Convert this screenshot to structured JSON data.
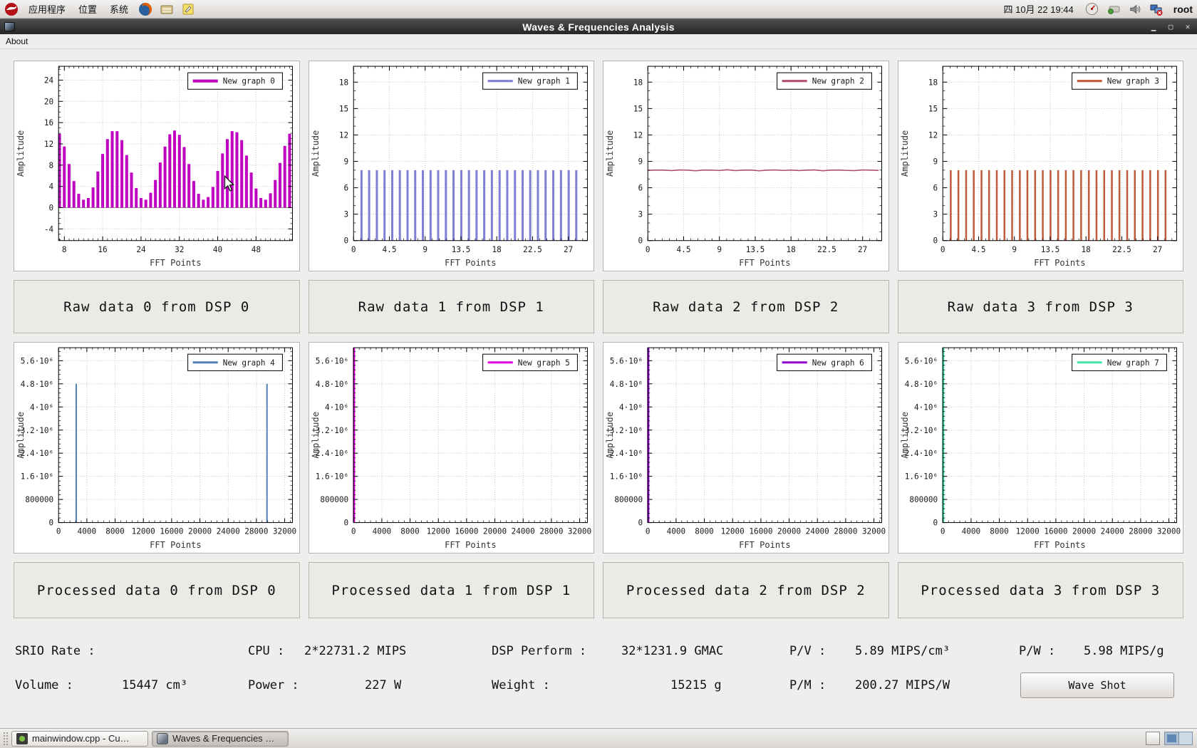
{
  "panel": {
    "menus": [
      "应用程序",
      "位置",
      "系统"
    ],
    "clock": "四 10月 22 19:44",
    "user": "root"
  },
  "window": {
    "title": "Waves & Frequencies Analysis",
    "about": "About"
  },
  "captions": {
    "raw": [
      "Raw data 0 from DSP 0",
      "Raw data 1 from DSP 1",
      "Raw data 2 from DSP 2",
      "Raw data 3 from DSP 3"
    ],
    "processed": [
      "Processed data 0 from DSP 0",
      "Processed data 1 from DSP 1",
      "Processed data 2 from DSP 2",
      "Processed data 3 from DSP 3"
    ]
  },
  "stats": {
    "row1": [
      {
        "label": "SRIO Rate :",
        "value": ""
      },
      {
        "label": "CPU :",
        "value": "2*22731.2 MIPS"
      },
      {
        "label": "DSP Perform :",
        "value": "32*1231.9 GMAC"
      },
      {
        "label": "P/V :",
        "value": "5.89 MIPS/cm³"
      },
      {
        "label": "P/W :",
        "value": "5.98 MIPS/g"
      }
    ],
    "row2": [
      {
        "label": "Volume :",
        "value": "15447 cm³"
      },
      {
        "label": "Power :",
        "value": "227 W"
      },
      {
        "label": "Weight :",
        "value": "15215 g"
      },
      {
        "label": "P/M :",
        "value": "200.27 MIPS/W"
      }
    ],
    "button": "Wave Shot"
  },
  "taskbar": {
    "tasks": [
      "mainwindow.cpp - Cu…",
      "Waves & Frequencies …"
    ]
  },
  "chart_data": [
    {
      "type": "bars",
      "legend": "New graph 0",
      "color": "#c000c0",
      "lw": 4,
      "xlabel": "FFT Points",
      "ylabel": "Amplitude",
      "xlim": [
        6.8,
        55.6
      ],
      "ylim": [
        -6.2,
        26.6
      ],
      "xticks": [
        8,
        16,
        24,
        32,
        40,
        48
      ],
      "xticklabels": [
        "8",
        "16",
        "24",
        "32",
        "40",
        "48"
      ],
      "xminor": 7,
      "yticks": [
        -4,
        0,
        4,
        8,
        12,
        16,
        20,
        24
      ],
      "yticklabels": [
        "-4",
        "0",
        "4",
        "8",
        "12",
        "16",
        "20",
        "24"
      ],
      "yminor": 3,
      "x": [
        7,
        8,
        9,
        10,
        11,
        12,
        13,
        14,
        15,
        16,
        17,
        18,
        19,
        20,
        21,
        22,
        23,
        24,
        25,
        26,
        27,
        28,
        29,
        30,
        31,
        32,
        33,
        34,
        35,
        36,
        37,
        38,
        39,
        40,
        41,
        42,
        43,
        44,
        45,
        46,
        47,
        48,
        49,
        50,
        51,
        52,
        53,
        54,
        55
      ],
      "y": [
        13.9,
        11.5,
        8.2,
        5.0,
        2.6,
        1.5,
        1.8,
        3.8,
        6.8,
        10.1,
        12.9,
        14.4,
        14.4,
        12.7,
        9.9,
        6.6,
        3.7,
        1.8,
        1.5,
        2.8,
        5.2,
        8.5,
        11.5,
        13.8,
        14.5,
        13.7,
        11.4,
        8.2,
        5.0,
        2.6,
        1.5,
        2.0,
        3.9,
        6.9,
        10.2,
        12.9,
        14.4,
        14.2,
        12.7,
        9.8,
        6.6,
        3.6,
        1.8,
        1.5,
        2.7,
        5.2,
        8.4,
        11.6,
        13.9
      ]
    },
    {
      "type": "bars",
      "legend": "New graph 1",
      "color": "#7f7fd5",
      "lw": 3,
      "xlabel": "FFT Points",
      "ylabel": "Amplitude",
      "xlim": [
        0,
        29.4
      ],
      "ylim": [
        0,
        19.8
      ],
      "xticks": [
        0,
        4.5,
        9,
        13.5,
        18,
        22.5,
        27
      ],
      "xticklabels": [
        "0",
        "4.5",
        "9",
        "13.5",
        "18",
        "22.5",
        "27"
      ],
      "xminor": 4,
      "yticks": [
        0,
        3,
        6,
        9,
        12,
        15,
        18
      ],
      "yticklabels": [
        "0",
        "3",
        "6",
        "9",
        "12",
        "15",
        "18"
      ],
      "yminor": 2,
      "x": [
        1,
        1.96,
        2.93,
        3.89,
        4.86,
        5.82,
        6.79,
        7.75,
        8.71,
        9.68,
        10.64,
        11.61,
        12.57,
        13.54,
        14.5,
        15.46,
        16.43,
        17.39,
        18.36,
        19.32,
        20.29,
        21.25,
        22.21,
        23.18,
        24.14,
        25.11,
        26.07,
        27.04,
        28
      ],
      "y": [
        8,
        8,
        8,
        8,
        8,
        8,
        8,
        8,
        8,
        8,
        8,
        8,
        8,
        8,
        8,
        8,
        8,
        8,
        8,
        8,
        8,
        8,
        8,
        8,
        8,
        8,
        8,
        8,
        8
      ]
    },
    {
      "type": "line",
      "legend": "New graph 2",
      "color": "#b0506a",
      "lw": 1.6,
      "xlabel": "FFT Points",
      "ylabel": "Amplitude",
      "xlim": [
        0,
        29.4
      ],
      "ylim": [
        0,
        19.8
      ],
      "xticks": [
        0,
        4.5,
        9,
        13.5,
        18,
        22.5,
        27
      ],
      "xticklabels": [
        "0",
        "4.5",
        "9",
        "13.5",
        "18",
        "22.5",
        "27"
      ],
      "xminor": 4,
      "yticks": [
        0,
        3,
        6,
        9,
        12,
        15,
        18
      ],
      "yticklabels": [
        "0",
        "3",
        "6",
        "9",
        "12",
        "15",
        "18"
      ],
      "yminor": 2,
      "x": [
        0,
        1,
        2,
        3,
        4,
        5,
        6,
        7,
        8,
        9,
        10,
        11,
        12,
        13,
        14,
        15,
        16,
        17,
        18,
        19,
        20,
        21,
        22,
        23,
        24,
        25,
        26,
        27,
        28,
        29
      ],
      "y": [
        7.98,
        8.02,
        8.0,
        7.95,
        8.03,
        8.0,
        7.94,
        8.02,
        8.0,
        7.97,
        8.04,
        7.95,
        8.0,
        8.02,
        7.93,
        8.0,
        8.03,
        7.97,
        8.02,
        7.95,
        8.0,
        8.03,
        7.94,
        8.0,
        8.02,
        7.97,
        7.95,
        8.03,
        8.0,
        7.98
      ]
    },
    {
      "type": "bars",
      "legend": "New graph 3",
      "color": "#c05a3c",
      "lw": 2.5,
      "xlabel": "FFT Points",
      "ylabel": "Amplitude",
      "xlim": [
        0,
        29.4
      ],
      "ylim": [
        0,
        19.8
      ],
      "xticks": [
        0,
        4.5,
        9,
        13.5,
        18,
        22.5,
        27
      ],
      "xticklabels": [
        "0",
        "4.5",
        "9",
        "13.5",
        "18",
        "22.5",
        "27"
      ],
      "xminor": 4,
      "yticks": [
        0,
        3,
        6,
        9,
        12,
        15,
        18
      ],
      "yticklabels": [
        "0",
        "3",
        "6",
        "9",
        "12",
        "15",
        "18"
      ],
      "yminor": 2,
      "x": [
        1,
        1.96,
        2.93,
        3.89,
        4.86,
        5.82,
        6.79,
        7.75,
        8.71,
        9.68,
        10.64,
        11.61,
        12.57,
        13.54,
        14.5,
        15.46,
        16.43,
        17.39,
        18.36,
        19.32,
        20.29,
        21.25,
        22.21,
        23.18,
        24.14,
        25.11,
        26.07,
        27.04,
        28
      ],
      "y": [
        8,
        8,
        8,
        8,
        8,
        8,
        8,
        8,
        8,
        8,
        8,
        8,
        8,
        8,
        8,
        8,
        8,
        8,
        8,
        8,
        8,
        8,
        8,
        8,
        8,
        8,
        8,
        8,
        8
      ]
    },
    {
      "type": "bars",
      "legend": "New graph 4",
      "color": "#5580b4",
      "lw": 2,
      "xlabel": "FFT Points",
      "ylabel": "Amplitude",
      "xlim": [
        0,
        33100
      ],
      "ylim": [
        0,
        6050000
      ],
      "xticks": [
        0,
        4000,
        8000,
        12000,
        16000,
        20000,
        24000,
        28000,
        32000
      ],
      "xticklabels": [
        "0",
        "4000",
        "8000",
        "12000",
        "16000",
        "20000",
        "24000",
        "28000",
        "32000"
      ],
      "xminor": 4,
      "yticks": [
        0,
        800000,
        1600000,
        2400000,
        3200000,
        4000000,
        4800000,
        5600000
      ],
      "yticklabels": [
        "0",
        "800000",
        "1.6·10⁶",
        "2.4·10⁶",
        "3.2·10⁶",
        "4·10⁶",
        "4.8·10⁶",
        "5.6·10⁶"
      ],
      "yminor": 4,
      "x": [
        2500,
        29500
      ],
      "y": [
        4800000,
        4800000
      ]
    },
    {
      "type": "bars",
      "legend": "New graph 5",
      "color": "#e000e0",
      "lw": 3,
      "xlabel": "FFT Points",
      "ylabel": "Amplitude",
      "xlim": [
        0,
        33100
      ],
      "ylim": [
        0,
        6050000
      ],
      "xticks": [
        0,
        4000,
        8000,
        12000,
        16000,
        20000,
        24000,
        28000,
        32000
      ],
      "xticklabels": [
        "0",
        "4000",
        "8000",
        "12000",
        "16000",
        "20000",
        "24000",
        "28000",
        "32000"
      ],
      "xminor": 4,
      "yticks": [
        0,
        800000,
        1600000,
        2400000,
        3200000,
        4000000,
        4800000,
        5600000
      ],
      "yticklabels": [
        "0",
        "800000",
        "1.6·10⁶",
        "2.4·10⁶",
        "3.2·10⁶",
        "4·10⁶",
        "4.8·10⁶",
        "5.6·10⁶"
      ],
      "yminor": 4,
      "x": [
        60
      ],
      "y": [
        6300000
      ]
    },
    {
      "type": "bars",
      "legend": "New graph 6",
      "color": "#9000d0",
      "lw": 3,
      "xlabel": "FFT Points",
      "ylabel": "Amplitude",
      "xlim": [
        0,
        33100
      ],
      "ylim": [
        0,
        6050000
      ],
      "xticks": [
        0,
        4000,
        8000,
        12000,
        16000,
        20000,
        24000,
        28000,
        32000
      ],
      "xticklabels": [
        "0",
        "4000",
        "8000",
        "12000",
        "16000",
        "20000",
        "24000",
        "28000",
        "32000"
      ],
      "xminor": 4,
      "yticks": [
        0,
        800000,
        1600000,
        2400000,
        3200000,
        4000000,
        4800000,
        5600000
      ],
      "yticklabels": [
        "0",
        "800000",
        "1.6·10⁶",
        "2.4·10⁶",
        "3.2·10⁶",
        "4·10⁶",
        "4.8·10⁶",
        "5.6·10⁶"
      ],
      "yminor": 4,
      "x": [
        60
      ],
      "y": [
        6300000
      ]
    },
    {
      "type": "bars",
      "legend": "New graph 7",
      "color": "#40e8a8",
      "lw": 3,
      "xlabel": "FFT Points",
      "ylabel": "Amplitude",
      "xlim": [
        0,
        33100
      ],
      "ylim": [
        0,
        6050000
      ],
      "xticks": [
        0,
        4000,
        8000,
        12000,
        16000,
        20000,
        24000,
        28000,
        32000
      ],
      "xticklabels": [
        "0",
        "4000",
        "8000",
        "12000",
        "16000",
        "20000",
        "24000",
        "28000",
        "32000"
      ],
      "xminor": 4,
      "yticks": [
        0,
        800000,
        1600000,
        2400000,
        3200000,
        4000000,
        4800000,
        5600000
      ],
      "yticklabels": [
        "0",
        "800000",
        "1.6·10⁶",
        "2.4·10⁶",
        "3.2·10⁶",
        "4·10⁶",
        "4.8·10⁶",
        "5.6·10⁶"
      ],
      "yminor": 4,
      "x": [
        60
      ],
      "y": [
        6300000
      ]
    }
  ]
}
